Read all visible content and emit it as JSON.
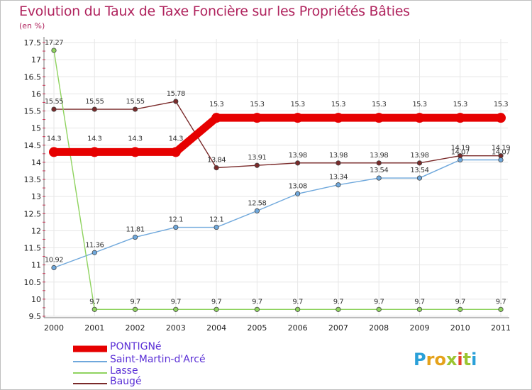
{
  "title": "Evolution du Taux de Taxe Foncière sur les Propriétés Bâties",
  "subtitle": "(en %)",
  "logo": {
    "text": "Proxiti",
    "letters": [
      "P",
      "r",
      "o",
      "x",
      "i",
      "t",
      "i"
    ],
    "colors": [
      "#2aa0d8",
      "#e5a21b",
      "#e5a21b",
      "#9bc531",
      "#e5432b",
      "#9bc531",
      "#2aa0d8"
    ]
  },
  "chart_data": {
    "type": "line",
    "title": "Evolution du Taux de Taxe Foncière sur les Propriétés Bâties",
    "ylabel": "(en %)",
    "xlabel": "",
    "ylim": [
      9.5,
      17.5
    ],
    "yticks": [
      "9.5",
      "10",
      "10.5",
      "11",
      "11.5",
      "12",
      "12.5",
      "13",
      "13.5",
      "14",
      "14.5",
      "15",
      "15.5",
      "16",
      "16.5",
      "17",
      "17.5"
    ],
    "categories": [
      "2000",
      "2001",
      "2002",
      "2003",
      "2004",
      "2005",
      "2006",
      "2007",
      "2008",
      "2009",
      "2010",
      "2011"
    ],
    "series": [
      {
        "name": "PONTIGNé",
        "color": "#e60000",
        "values": [
          14.3,
          14.3,
          14.3,
          14.3,
          15.3,
          15.3,
          15.3,
          15.3,
          15.3,
          15.3,
          15.3,
          15.3
        ],
        "labels": [
          "14.3",
          "14.3",
          "14.3",
          "14.3",
          "15.3",
          "15.3",
          "15.3",
          "15.3",
          "15.3",
          "15.3",
          "15.3",
          "15.3"
        ]
      },
      {
        "name": "Saint-Martin-d'Arcé",
        "color": "#6fa8dc",
        "values": [
          10.92,
          11.36,
          11.81,
          12.1,
          12.1,
          12.58,
          13.08,
          13.34,
          13.54,
          13.54,
          14.07,
          14.07
        ],
        "labels": [
          "10.92",
          "11.36",
          "11.81",
          "12.1",
          "12.1",
          "12.58",
          "13.08",
          "13.34",
          "13.54",
          "13.54",
          "14.07",
          "14.07"
        ]
      },
      {
        "name": "Lasse",
        "color": "#8fd35f",
        "values": [
          17.27,
          9.7,
          9.7,
          9.7,
          9.7,
          9.7,
          9.7,
          9.7,
          9.7,
          9.7,
          9.7,
          9.7
        ],
        "labels": [
          "17.27",
          "9.7",
          "9.7",
          "9.7",
          "9.7",
          "9.7",
          "9.7",
          "9.7",
          "9.7",
          "9.7",
          "9.7",
          "9.7"
        ]
      },
      {
        "name": "Baugé",
        "color": "#7a2a2a",
        "values": [
          15.55,
          15.55,
          15.55,
          15.78,
          13.84,
          13.91,
          13.98,
          13.98,
          13.98,
          13.98,
          14.19,
          14.19
        ],
        "labels": [
          "15.55",
          "15.55",
          "15.55",
          "15.78",
          "13.84",
          "13.91",
          "13.98",
          "13.98",
          "13.98",
          "13.98",
          "14.19",
          "14.19"
        ]
      }
    ]
  }
}
